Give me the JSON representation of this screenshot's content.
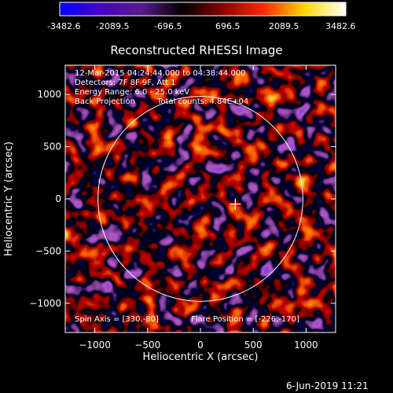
{
  "colorbar": {
    "ticks": [
      "-3482.6",
      "-2089.5",
      "-696.5",
      "696.5",
      "2089.5",
      "3482.6"
    ],
    "min": -3482.6,
    "max": 3482.6,
    "colors": [
      "#0000ff",
      "#4a00c8",
      "#5a1a8c",
      "#000000",
      "#8c0000",
      "#ff2a00",
      "#ffd700",
      "#ffffff"
    ]
  },
  "chart_data": {
    "type": "heatmap",
    "title": "Reconstructed RHESSI Image",
    "xlabel": "Heliocentric X (arcsec)",
    "ylabel": "Heliocentric Y (arcsec)",
    "xlim": [
      -1280,
      1280
    ],
    "ylim": [
      -1280,
      1280
    ],
    "xticks": [
      -1000,
      -500,
      0,
      500,
      1000
    ],
    "yticks": [
      -1000,
      -500,
      0,
      500,
      1000
    ],
    "xtick_labels": [
      "−1000",
      "−500",
      "0",
      "500",
      "1000"
    ],
    "ytick_labels": [
      "−1000",
      "−500",
      "0",
      "500",
      "1000"
    ],
    "solar_limb_radius": 970,
    "flare_marker": [
      330,
      -50
    ],
    "annotations": {
      "line1": "12-Mar-2015 04:24:44.000 to 04:38:44.000",
      "line2": "Detectors: 7F 8F 9F, Att 1",
      "line3": "Energy Range: 6.0 - 25.0 keV",
      "line4a": "Back Projection",
      "line4b": "Total counts: 4.84E+04",
      "spin_axis": "Spin Axis = [330,-80]",
      "flare_position": "Flare Position = [-226,-170]"
    }
  },
  "timestamp": "6-Jun-2019 11:21"
}
